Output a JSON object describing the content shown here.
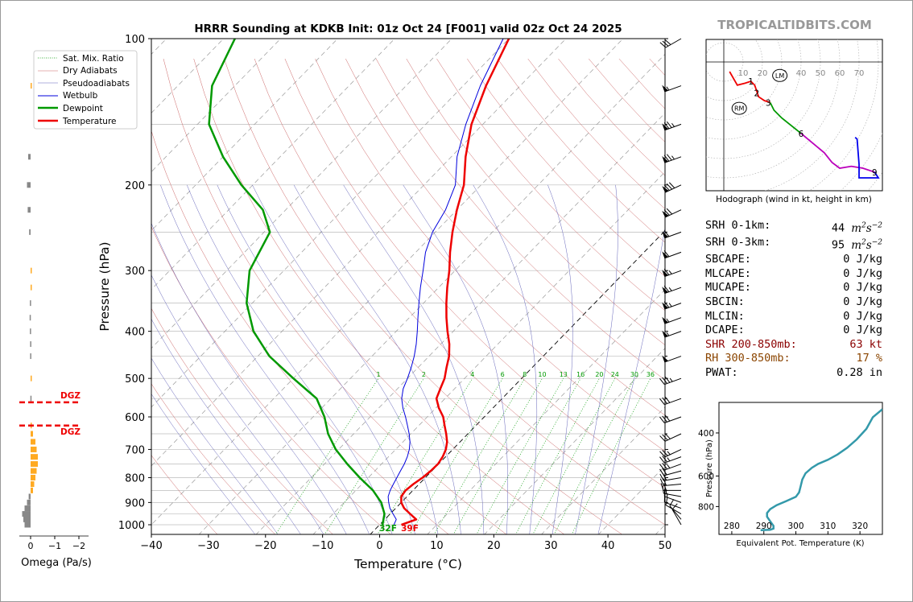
{
  "title": "HRRR Sounding at KDKB Init: 01z Oct 24 [F001] valid 02z Oct 24 2025",
  "watermark": "TROPICALTIDBITS.COM",
  "chart_data": [
    {
      "type": "line",
      "subtype": "skew-t",
      "xlabel": "Temperature (°C)",
      "ylabel": "Pressure (hPa)",
      "xlim": [
        -40,
        50
      ],
      "ylim": [
        1050,
        100
      ],
      "y_log": true,
      "x_ticks": [
        "−40",
        "−30",
        "−20",
        "−10",
        "0",
        "10",
        "20",
        "30",
        "40",
        "50"
      ],
      "y_ticks": [
        "100",
        "200",
        "300",
        "400",
        "500",
        "600",
        "700",
        "800",
        "900",
        "1000"
      ],
      "legend": {
        "placement": "top-left",
        "entries": [
          "Sat. Mix. Ratio",
          "Dry Adiabats",
          "Pseudoadiabats",
          "Wetbulb",
          "Dewpoint",
          "Temperature"
        ]
      },
      "mixing_ratio_labels": [
        "1",
        "2",
        "4",
        "6",
        "8",
        "10",
        "13",
        "16",
        "20",
        "24",
        "30",
        "36"
      ],
      "surface_labels": {
        "dewpoint": "32F",
        "temperature": "39F"
      },
      "series": [
        {
          "name": "Temperature",
          "color": "#ee0000",
          "points": [
            [
              3.8,
              1000
            ],
            [
              5.5,
              975
            ],
            [
              3.5,
              950
            ],
            [
              1.5,
              925
            ],
            [
              0.0,
              900
            ],
            [
              -1.0,
              875
            ],
            [
              -1.3,
              850
            ],
            [
              -1.0,
              825
            ],
            [
              -0.5,
              800
            ],
            [
              -0.2,
              775
            ],
            [
              -0.1,
              750
            ],
            [
              -0.5,
              725
            ],
            [
              -1.2,
              700
            ],
            [
              -2.3,
              675
            ],
            [
              -3.8,
              650
            ],
            [
              -5.5,
              625
            ],
            [
              -7.2,
              600
            ],
            [
              -9.5,
              575
            ],
            [
              -11.5,
              550
            ],
            [
              -12.5,
              525
            ],
            [
              -13.5,
              500
            ],
            [
              -15.0,
              475
            ],
            [
              -16.5,
              450
            ],
            [
              -18.5,
              425
            ],
            [
              -21.0,
              400
            ],
            [
              -23.5,
              375
            ],
            [
              -26.0,
              350
            ],
            [
              -28.5,
              325
            ],
            [
              -31.0,
              300
            ],
            [
              -34.0,
              275
            ],
            [
              -37.0,
              250
            ],
            [
              -40.0,
              225
            ],
            [
              -43.0,
              200
            ],
            [
              -47.5,
              175
            ],
            [
              -52.0,
              150
            ],
            [
              -56.0,
              125
            ],
            [
              -60.0,
              100
            ]
          ]
        },
        {
          "name": "Dewpoint",
          "color": "#009900",
          "points": [
            [
              0.5,
              1000
            ],
            [
              -1.0,
              950
            ],
            [
              -3.5,
              900
            ],
            [
              -7.0,
              850
            ],
            [
              -11.5,
              800
            ],
            [
              -16.0,
              750
            ],
            [
              -20.5,
              700
            ],
            [
              -24.5,
              650
            ],
            [
              -28.0,
              600
            ],
            [
              -32.5,
              550
            ],
            [
              -40.0,
              500
            ],
            [
              -48.0,
              450
            ],
            [
              -55.0,
              400
            ],
            [
              -61.0,
              350
            ],
            [
              -66.0,
              300
            ],
            [
              -69.0,
              250
            ],
            [
              -74.0,
              225
            ],
            [
              -82.0,
              200
            ],
            [
              -90.0,
              175
            ],
            [
              -98.0,
              150
            ],
            [
              -104.0,
              125
            ],
            [
              -108.0,
              100
            ]
          ]
        },
        {
          "name": "Wetbulb",
          "color": "#0000dd",
          "points": [
            [
              2.5,
              1000
            ],
            [
              2.0,
              975
            ],
            [
              0.5,
              950
            ],
            [
              -1.0,
              925
            ],
            [
              -2.2,
              900
            ],
            [
              -3.3,
              875
            ],
            [
              -4.0,
              850
            ],
            [
              -4.5,
              825
            ],
            [
              -5.0,
              800
            ],
            [
              -5.5,
              775
            ],
            [
              -6.0,
              750
            ],
            [
              -6.7,
              725
            ],
            [
              -7.6,
              700
            ],
            [
              -8.8,
              675
            ],
            [
              -10.3,
              650
            ],
            [
              -12.0,
              625
            ],
            [
              -13.8,
              600
            ],
            [
              -15.8,
              575
            ],
            [
              -17.6,
              550
            ],
            [
              -19.0,
              525
            ],
            [
              -20.0,
              500
            ],
            [
              -21.2,
              475
            ],
            [
              -22.6,
              450
            ],
            [
              -24.3,
              425
            ],
            [
              -26.3,
              400
            ],
            [
              -28.5,
              375
            ],
            [
              -30.8,
              350
            ],
            [
              -33.2,
              325
            ],
            [
              -35.6,
              300
            ],
            [
              -38.3,
              275
            ],
            [
              -40.5,
              250
            ],
            [
              -42.0,
              225
            ],
            [
              -44.5,
              200
            ],
            [
              -49.0,
              175
            ],
            [
              -53.0,
              150
            ],
            [
              -57.0,
              125
            ],
            [
              -61.0,
              100
            ]
          ]
        }
      ],
      "wind_barbs_kt": [
        {
          "p": 1000,
          "spd": 10,
          "dir": 330
        },
        {
          "p": 975,
          "spd": 10,
          "dir": 320
        },
        {
          "p": 950,
          "spd": 10,
          "dir": 300
        },
        {
          "p": 925,
          "spd": 10,
          "dir": 290
        },
        {
          "p": 900,
          "spd": 15,
          "dir": 290
        },
        {
          "p": 875,
          "spd": 15,
          "dir": 280
        },
        {
          "p": 850,
          "spd": 20,
          "dir": 270
        },
        {
          "p": 825,
          "spd": 20,
          "dir": 265
        },
        {
          "p": 800,
          "spd": 20,
          "dir": 260
        },
        {
          "p": 775,
          "spd": 20,
          "dir": 255
        },
        {
          "p": 750,
          "spd": 25,
          "dir": 250
        },
        {
          "p": 725,
          "spd": 25,
          "dir": 250
        },
        {
          "p": 700,
          "spd": 25,
          "dir": 245
        },
        {
          "p": 650,
          "spd": 30,
          "dir": 245
        },
        {
          "p": 600,
          "spd": 30,
          "dir": 250
        },
        {
          "p": 550,
          "spd": 30,
          "dir": 250
        },
        {
          "p": 500,
          "spd": 35,
          "dir": 250
        },
        {
          "p": 450,
          "spd": 50,
          "dir": 250
        },
        {
          "p": 400,
          "spd": 55,
          "dir": 250
        },
        {
          "p": 375,
          "spd": 55,
          "dir": 250
        },
        {
          "p": 350,
          "spd": 65,
          "dir": 250
        },
        {
          "p": 325,
          "spd": 65,
          "dir": 250
        },
        {
          "p": 300,
          "spd": 65,
          "dir": 250
        },
        {
          "p": 275,
          "spd": 60,
          "dir": 250
        },
        {
          "p": 250,
          "spd": 60,
          "dir": 250
        },
        {
          "p": 225,
          "spd": 70,
          "dir": 245
        },
        {
          "p": 200,
          "spd": 80,
          "dir": 245
        },
        {
          "p": 175,
          "spd": 75,
          "dir": 250
        },
        {
          "p": 150,
          "spd": 75,
          "dir": 250
        },
        {
          "p": 125,
          "spd": 55,
          "dir": 250
        },
        {
          "p": 100,
          "spd": 30,
          "dir": 240
        }
      ]
    },
    {
      "type": "bar",
      "subtype": "omega-profile",
      "xlabel": "Omega (Pa/s)",
      "x_ticks": [
        "0",
        "−1",
        "−2"
      ],
      "xlim": [
        0.25,
        -2.3
      ],
      "dgz_label": "DGZ",
      "dgz_bounds_hpa": [
        560,
        625
      ],
      "bars": [
        {
          "p": 1000,
          "v": 0.25
        },
        {
          "p": 975,
          "v": 0.3
        },
        {
          "p": 950,
          "v": 0.35
        },
        {
          "p": 925,
          "v": 0.25
        },
        {
          "p": 900,
          "v": 0.15
        },
        {
          "p": 875,
          "v": 0.08
        },
        {
          "p": 850,
          "v": -0.1
        },
        {
          "p": 825,
          "v": -0.15
        },
        {
          "p": 800,
          "v": -0.2
        },
        {
          "p": 775,
          "v": -0.25
        },
        {
          "p": 750,
          "v": -0.3
        },
        {
          "p": 725,
          "v": -0.3
        },
        {
          "p": 700,
          "v": -0.25
        },
        {
          "p": 675,
          "v": -0.2
        },
        {
          "p": 650,
          "v": -0.1
        },
        {
          "p": 625,
          "v": -0.02
        },
        {
          "p": 550,
          "v": 0.01
        },
        {
          "p": 500,
          "v": -0.01
        },
        {
          "p": 450,
          "v": 0.02
        },
        {
          "p": 425,
          "v": 0.02
        },
        {
          "p": 400,
          "v": 0.03
        },
        {
          "p": 375,
          "v": 0.04
        },
        {
          "p": 350,
          "v": 0.03
        },
        {
          "p": 325,
          "v": -0.01
        },
        {
          "p": 300,
          "v": -0.03
        },
        {
          "p": 250,
          "v": 0.06
        },
        {
          "p": 225,
          "v": 0.12
        },
        {
          "p": 200,
          "v": 0.15
        },
        {
          "p": 175,
          "v": 0.1
        },
        {
          "p": 125,
          "v": -0.02
        }
      ]
    },
    {
      "type": "line",
      "subtype": "hodograph",
      "xlabel": "Hodograph (wind in kt, height in km)",
      "ring_labels": [
        "10",
        "20",
        "30",
        "40",
        "50",
        "60",
        "70"
      ],
      "markers": [
        "RM",
        "LM"
      ],
      "height_labels": [
        {
          "label": "1",
          "u": 14,
          "v": -10
        },
        {
          "label": "2",
          "u": 17,
          "v": -16
        },
        {
          "label": "3",
          "u": 23,
          "v": -21
        },
        {
          "label": "6",
          "u": 40,
          "v": -37
        },
        {
          "label": "9",
          "u": 78,
          "v": -57
        }
      ],
      "segments": [
        {
          "color": "#ee0000",
          "points": [
            [
              3,
              -5
            ],
            [
              7,
              -12
            ],
            [
              11,
              -11
            ],
            [
              14,
              -10
            ],
            [
              16,
              -12
            ],
            [
              18,
              -18
            ],
            [
              21,
              -20
            ],
            [
              24,
              -21
            ]
          ]
        },
        {
          "color": "#009900",
          "points": [
            [
              24,
              -21
            ],
            [
              26,
              -25
            ],
            [
              30,
              -29
            ],
            [
              35,
              -33
            ],
            [
              40,
              -37
            ]
          ]
        },
        {
          "color": "#bb00bb",
          "points": [
            [
              40,
              -37
            ],
            [
              46,
              -42
            ],
            [
              52,
              -47
            ],
            [
              56,
              -52
            ],
            [
              60,
              -55
            ],
            [
              66,
              -54
            ],
            [
              72,
              -55
            ],
            [
              78,
              -57
            ]
          ]
        },
        {
          "color": "#0000ee",
          "points": [
            [
              78,
              -57
            ],
            [
              80,
              -60
            ],
            [
              70,
              -60
            ],
            [
              70,
              -53
            ],
            [
              69,
              -40
            ],
            [
              68,
              -39
            ]
          ]
        }
      ]
    },
    {
      "type": "line",
      "subtype": "theta-e-profile",
      "xlabel": "Equivalent Pot. Temperature (K)",
      "ylabel": "Pressure (hPa)",
      "x_ticks": [
        "280",
        "290",
        "300",
        "310",
        "320"
      ],
      "y_ticks": [
        "400",
        "600",
        "800"
      ],
      "xlim": [
        276,
        327
      ],
      "ylim": [
        1040,
        300
      ],
      "color": "#3399aa",
      "points": [
        [
          289,
          1000
        ],
        [
          292,
          995
        ],
        [
          293,
          985
        ],
        [
          293,
          960
        ],
        [
          292,
          920
        ],
        [
          291,
          880
        ],
        [
          291,
          850
        ],
        [
          292,
          820
        ],
        [
          294,
          790
        ],
        [
          297,
          760
        ],
        [
          300,
          730
        ],
        [
          301,
          700
        ],
        [
          301.5,
          660
        ],
        [
          302,
          620
        ],
        [
          303,
          585
        ],
        [
          305,
          555
        ],
        [
          307,
          535
        ],
        [
          310,
          515
        ],
        [
          313,
          490
        ],
        [
          316,
          460
        ],
        [
          319,
          425
        ],
        [
          322,
          385
        ],
        [
          324,
          345
        ],
        [
          327,
          320
        ]
      ]
    }
  ],
  "stats": [
    {
      "label": "SRH 0-1km:",
      "value": "44",
      "unit": "m2s-2",
      "color": "#000000"
    },
    {
      "label": "SRH 0-3km:",
      "value": "95",
      "unit": "m2s-2",
      "color": "#000000"
    },
    {
      "label": "SBCAPE:",
      "value": "0 J/kg",
      "color": "#000000"
    },
    {
      "label": "MLCAPE:",
      "value": "0 J/kg",
      "color": "#000000"
    },
    {
      "label": "MUCAPE:",
      "value": "0 J/kg",
      "color": "#000000"
    },
    {
      "label": "SBCIN:",
      "value": "0 J/kg",
      "color": "#000000"
    },
    {
      "label": "MLCIN:",
      "value": "0 J/kg",
      "color": "#000000"
    },
    {
      "label": "DCAPE:",
      "value": "0 J/kg",
      "color": "#000000"
    },
    {
      "label": "SHR 200-850mb:",
      "value": "63 kt",
      "color": "#8b0000"
    },
    {
      "label": "RH 300-850mb:",
      "value": "17 %",
      "color": "#8b4500"
    },
    {
      "label": "PWAT:",
      "value": "0.28 in",
      "color": "#000000"
    }
  ]
}
